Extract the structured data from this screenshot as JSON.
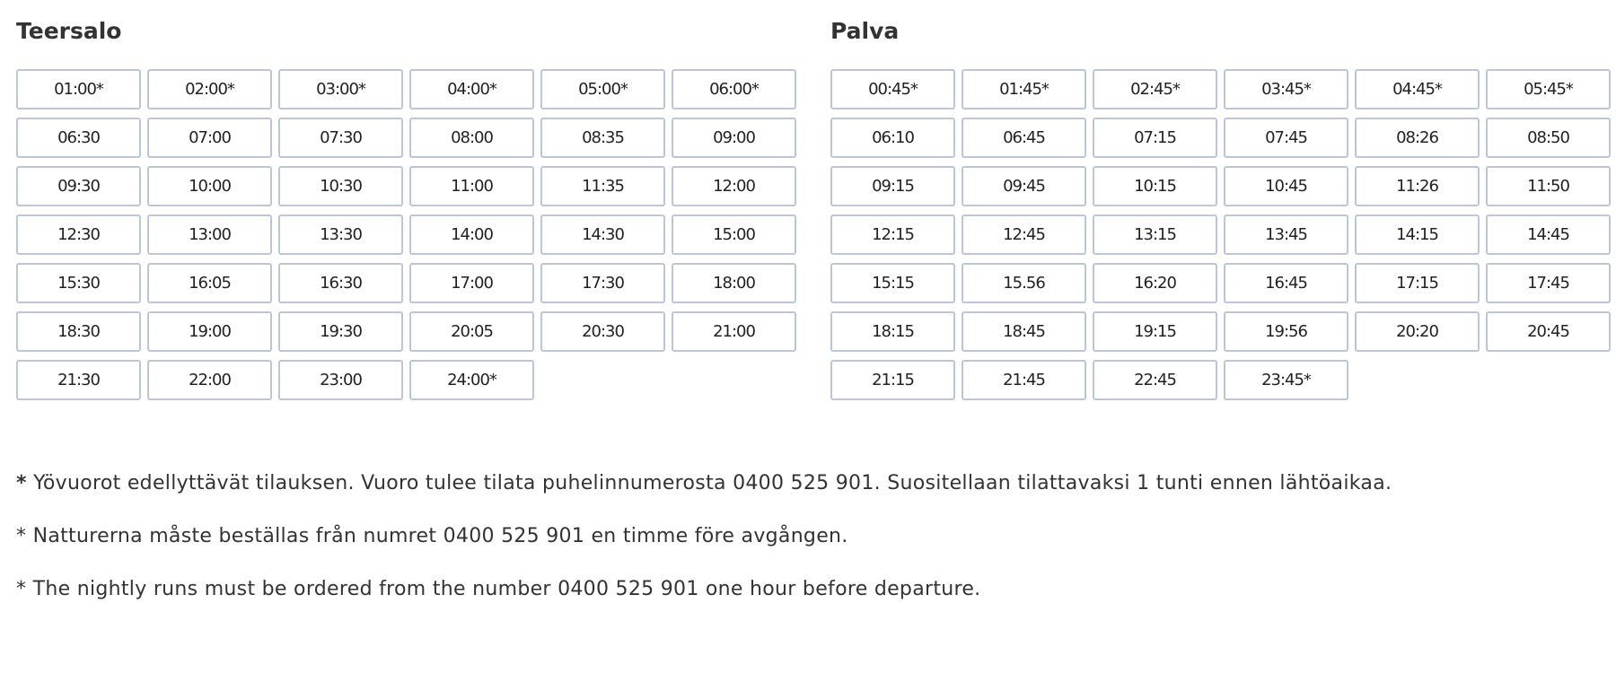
{
  "columns": [
    {
      "title": "Teersalo",
      "times": [
        "01:00*",
        "02:00*",
        "03:00*",
        "04:00*",
        "05:00*",
        "06:00*",
        "06:30",
        "07:00",
        "07:30",
        "08:00",
        "08:35",
        "09:00",
        "09:30",
        "10:00",
        "10:30",
        "11:00",
        "11:35",
        "12:00",
        "12:30",
        "13:00",
        "13:30",
        "14:00",
        "14:30",
        "15:00",
        "15:30",
        "16:05",
        "16:30",
        "17:00",
        "17:30",
        "18:00",
        "18:30",
        "19:00",
        "19:30",
        "20:05",
        "20:30",
        "21:00",
        "21:30",
        "22:00",
        "23:00",
        "24:00*"
      ]
    },
    {
      "title": "Palva",
      "times": [
        "00:45*",
        "01:45*",
        "02:45*",
        "03:45*",
        "04:45*",
        "05:45*",
        "06:10",
        "06:45",
        "07:15",
        "07:45",
        "08:26",
        "08:50",
        "09:15",
        "09:45",
        "10:15",
        "10:45",
        "11:26",
        "11:50",
        "12:15",
        "12:45",
        "13:15",
        "13:45",
        "14:15",
        "14:45",
        "15:15",
        "15.56",
        "16:20",
        "16:45",
        "17:15",
        "17:45",
        "18:15",
        "18:45",
        "19:15",
        "19:56",
        "20:20",
        "20:45",
        "21:15",
        "21:45",
        "22:45",
        "23:45*"
      ]
    }
  ],
  "notes": {
    "fi_star": "*",
    "fi": " Yövuorot edellyttävät tilauksen. Vuoro tulee tilata puhelinnumerosta 0400 525 901. Suositellaan tilattavaksi 1 tunti ennen lähtöaikaa.",
    "sv": "* Natturerna måste beställas från numret 0400 525 901 en timme före avgången.",
    "en": "* The nightly runs must be ordered from the number 0400 525 901 one hour before departure."
  }
}
